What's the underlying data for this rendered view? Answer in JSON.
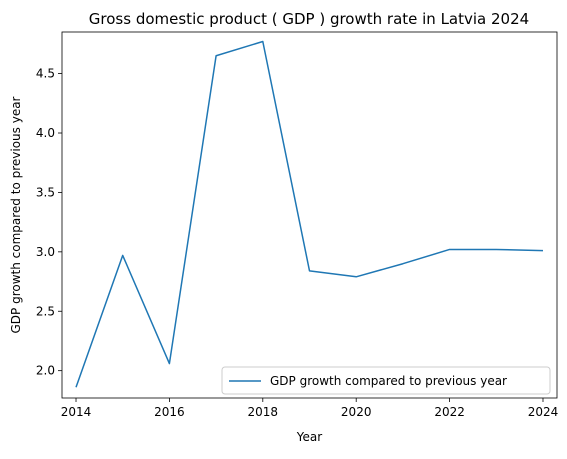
{
  "chart_data": {
    "type": "line",
    "title": "Gross domestic product ( GDP ) growth rate in Latvia 2024",
    "xlabel": "Year",
    "ylabel": "GDP growth compared to previous year",
    "xlim": [
      2013.7,
      2024.3
    ],
    "ylim": [
      1.77,
      4.85
    ],
    "x_ticks": [
      2014,
      2016,
      2018,
      2020,
      2022,
      2024
    ],
    "y_ticks": [
      2.0,
      2.5,
      3.0,
      3.5,
      4.0,
      4.5
    ],
    "x_tick_labels": [
      "2014",
      "2016",
      "2018",
      "2020",
      "2022",
      "2024"
    ],
    "y_tick_labels": [
      "2.0",
      "2.5",
      "3.0",
      "3.5",
      "4.0",
      "4.5"
    ],
    "grid": false,
    "legend_position": "lower-right",
    "series": [
      {
        "name": "GDP growth compared to previous year",
        "color": "#1f77b4",
        "x": [
          2014,
          2015,
          2016,
          2017,
          2018,
          2019,
          2020,
          2021,
          2022,
          2023,
          2024
        ],
        "values": [
          1.86,
          2.97,
          2.06,
          4.65,
          4.77,
          2.84,
          2.79,
          2.9,
          3.02,
          3.02,
          3.01
        ]
      }
    ]
  }
}
